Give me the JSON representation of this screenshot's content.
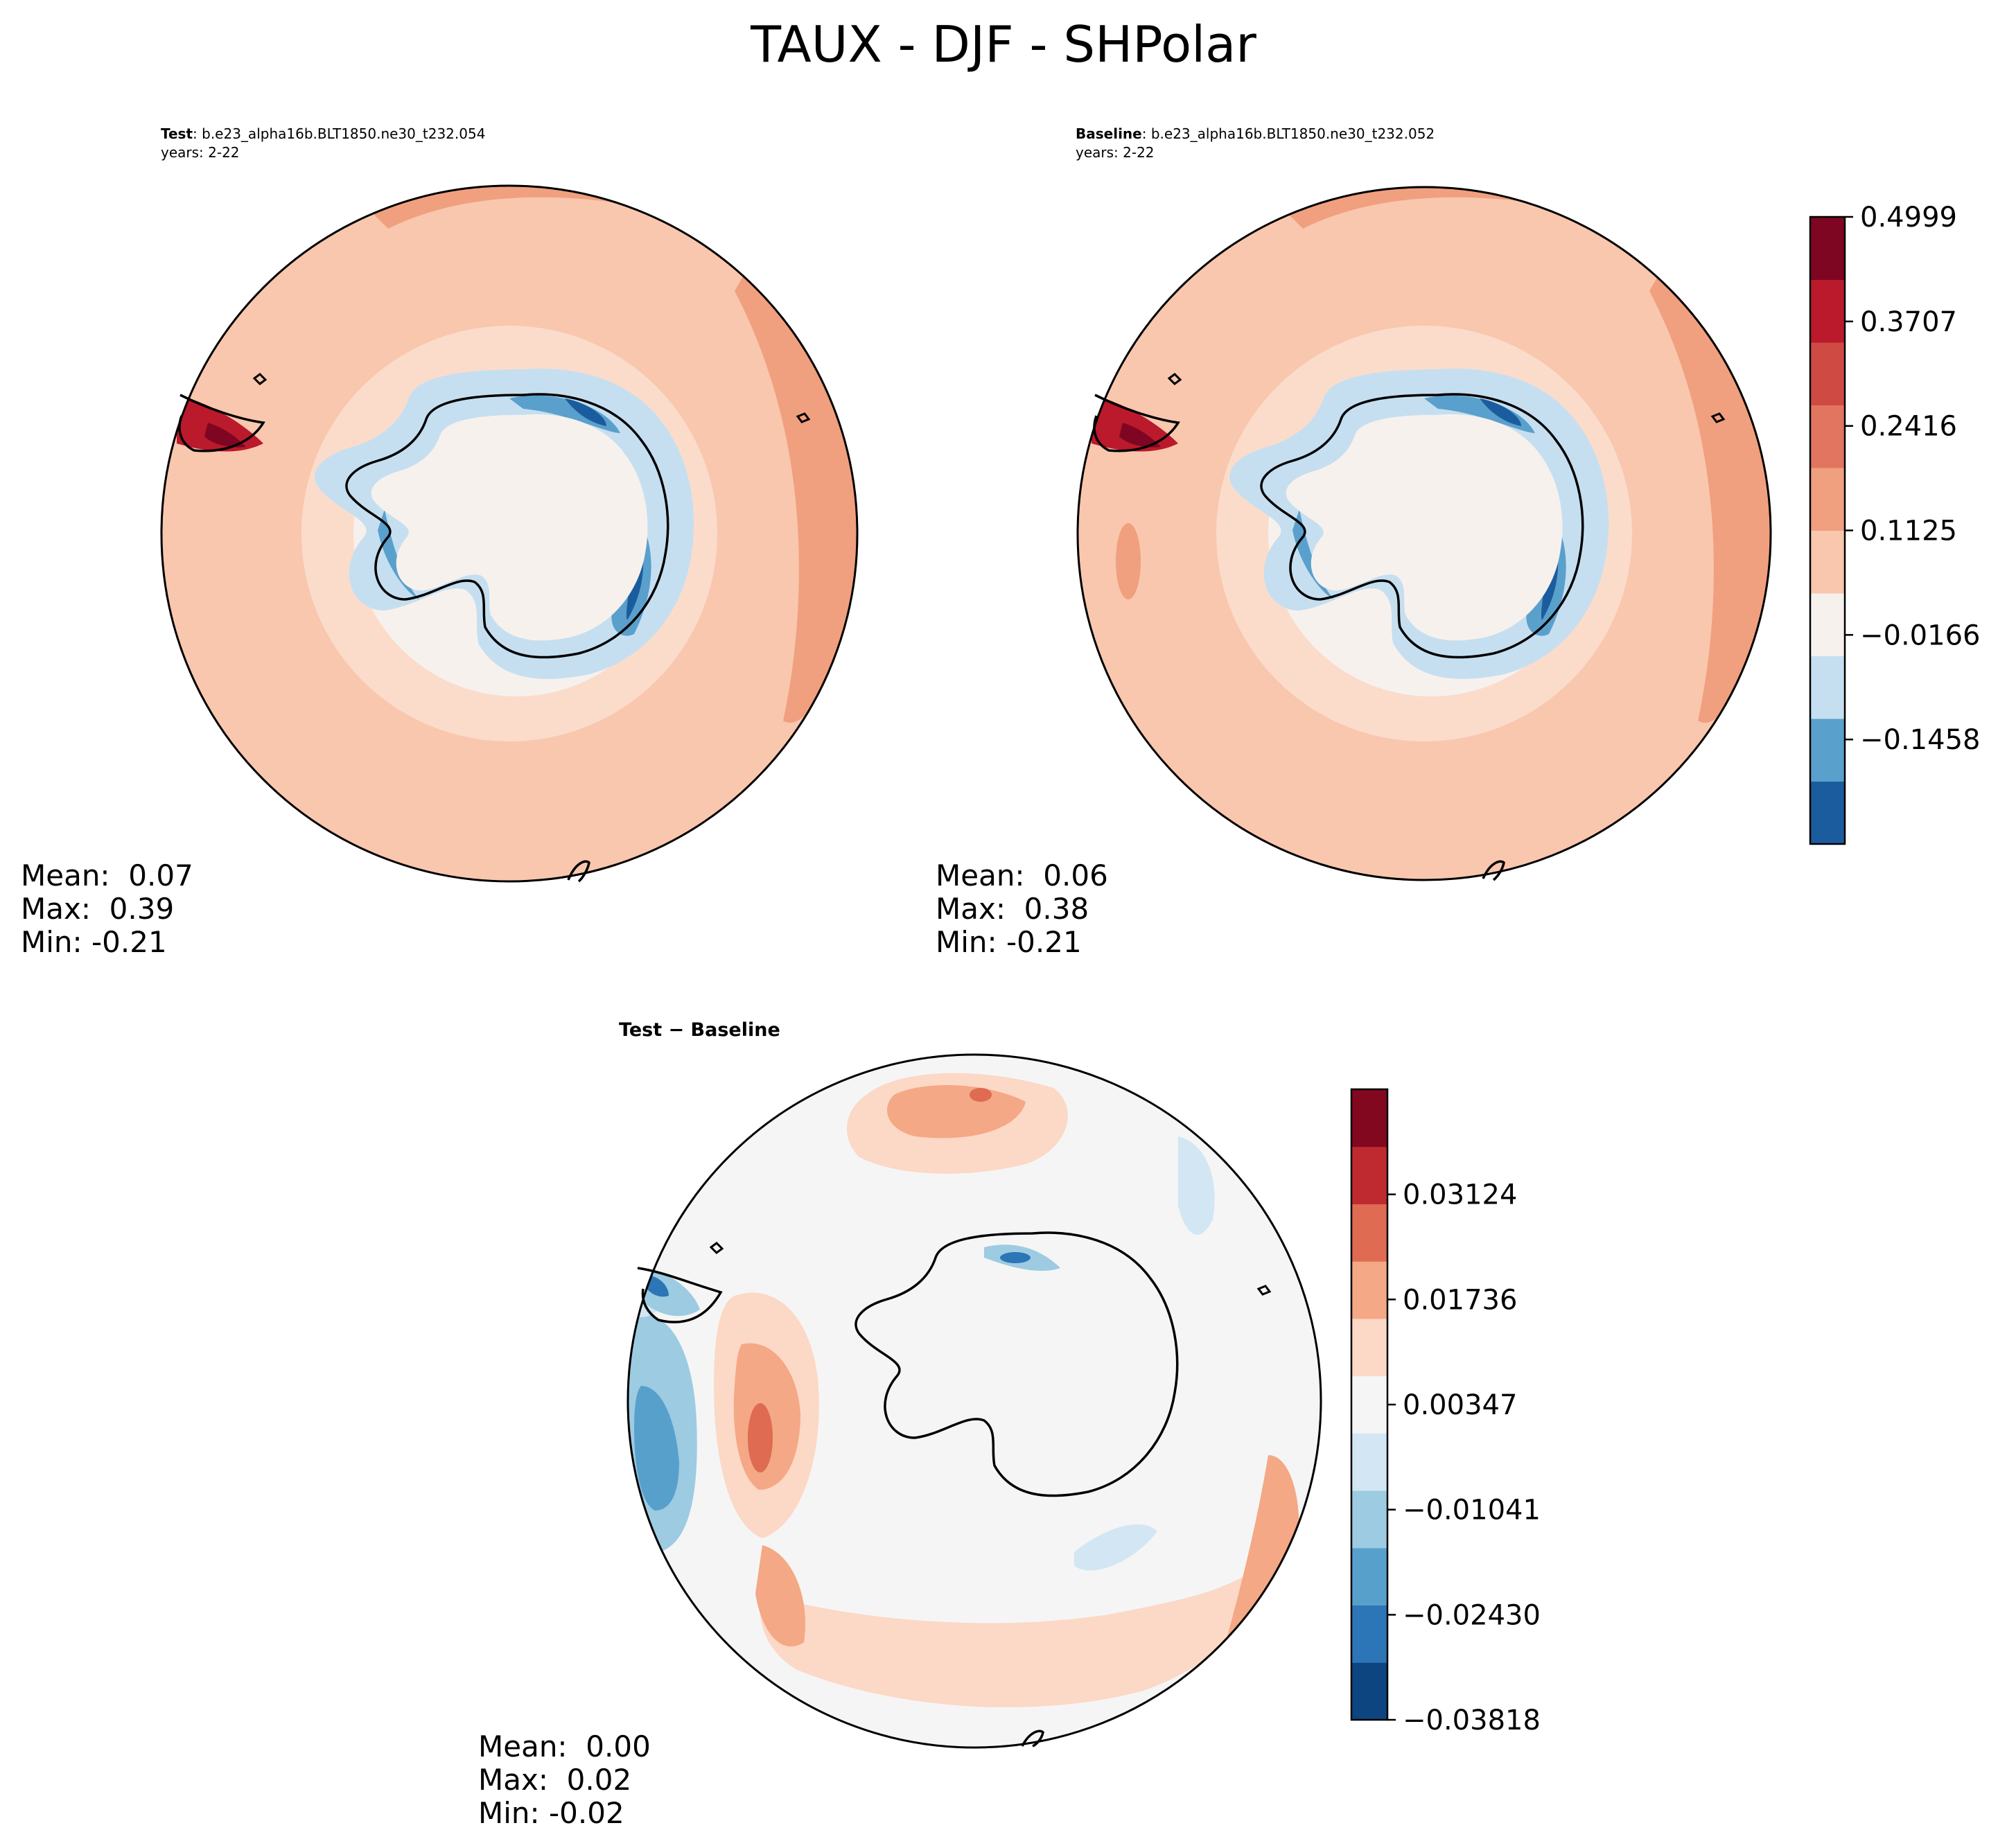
{
  "page_title": "TAUX - DJF - SHPolar",
  "colors": {
    "land_outline": "#000000",
    "top_palette": [
      "#1b5c9e",
      "#5aa0cc",
      "#c6dff0",
      "#f7f1ee",
      "#f9c7ae",
      "#f0a07f",
      "#e17560",
      "#cf4a43",
      "#ba1a2b",
      "#7e0622"
    ],
    "diff_palette": [
      "#0d4580",
      "#2c75b6",
      "#58a0cc",
      "#9dcbe2",
      "#d2e6f3",
      "#f5f5f5",
      "#fcd8c6",
      "#f4a885",
      "#de6b52",
      "#bf2a30",
      "#81081f"
    ]
  },
  "chart_data": [
    {
      "type": "heatmap",
      "projection": "south-polar-stereographic",
      "label": "Test",
      "case_name": "b.e23_alpha16b.BLT1850.ne30_t232.054",
      "years": "years: 2-22",
      "stats": {
        "mean": "Mean:  0.07",
        "max": "Max:  0.39",
        "min": "Min: -0.21"
      }
    },
    {
      "type": "heatmap",
      "projection": "south-polar-stereographic",
      "label": "Baseline",
      "case_name": "b.e23_alpha16b.BLT1850.ne30_t232.052",
      "years": "years: 2-22",
      "stats": {
        "mean": "Mean:  0.06",
        "max": "Max:  0.38",
        "min": "Min: -0.21"
      },
      "colorbar": {
        "min": -0.2749,
        "max": 0.4999,
        "levels": 10,
        "tick_values": [
          -0.1458,
          -0.0166,
          0.1125,
          0.2416,
          0.3707,
          0.4999
        ],
        "tick_labels": [
          "−0.1458",
          "−0.0166",
          "0.1125",
          "0.2416",
          "0.3707",
          "0.4999"
        ]
      }
    },
    {
      "type": "heatmap",
      "projection": "south-polar-stereographic",
      "title": "Test − Baseline",
      "stats": {
        "mean": "Mean:  0.00",
        "max": "Max:  0.02",
        "min": "Min: -0.02"
      },
      "colorbar": {
        "min": -0.03818,
        "max": 0.04513,
        "levels": 11,
        "tick_values": [
          -0.03818,
          -0.0243,
          -0.01041,
          0.00347,
          0.01736,
          0.03124
        ],
        "tick_labels": [
          "−0.03818",
          "−0.02430",
          "−0.01041",
          "0.00347",
          "0.01736",
          "0.03124"
        ]
      }
    }
  ]
}
